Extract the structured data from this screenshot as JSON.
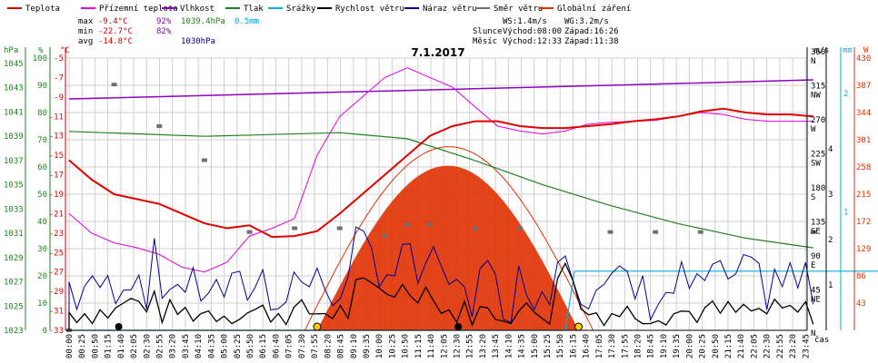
{
  "chart_data": {
    "type": "line",
    "title": "7.1.2017",
    "legend": [
      {
        "name": "Teplota",
        "color": "#e00000"
      },
      {
        "name": "Přízemní teplota",
        "color": "#e000e0"
      },
      {
        "name": "Vlhkost",
        "color": "#9000c0"
      },
      {
        "name": "Tlak",
        "color": "#208020"
      },
      {
        "name": "Srážky",
        "color": "#00b0e0"
      },
      {
        "name": "Rychlost větru",
        "color": "#000000"
      },
      {
        "name": "Náraz větru",
        "color": "#000090"
      },
      {
        "name": "Směr větru",
        "color": "#707070"
      },
      {
        "name": "Globální záření",
        "color": "#e03000"
      }
    ],
    "stats": {
      "max_label": "max",
      "max_temp": "-9.4°C",
      "max_hum": "92%",
      "max_press": "1039.4hPa",
      "rain": "0.5mm",
      "min_label": "min",
      "min_temp": "-22.7°C",
      "min_hum": "82%",
      "avg_label": "avg",
      "avg_temp": "-14.8°C",
      "avg_press": "1030hPa",
      "ws": "WS:1.4m/s",
      "wg": "WG:3.2m/s",
      "slunce_label": "Slunce",
      "slunce_vychod": "Východ:08:00",
      "slunce_zapad": "Západ:16:26",
      "mesic_label": "Měsíc",
      "mesic_vychod": "Východ:12:33",
      "mesic_zapad": "Západ:11:38"
    },
    "axes": {
      "hpa_label": "hPa",
      "hum_label": "%",
      "temp_label": "°C",
      "wind_label": "m/s",
      "rain_label": "mm",
      "sun_label": "W",
      "hpa_ticks": [
        "1023",
        "1025",
        "1027",
        "1029",
        "1031",
        "1033",
        "1035",
        "1037",
        "1039",
        "1041",
        "1043",
        "1045"
      ],
      "hum_ticks": [
        "0",
        "10",
        "20",
        "30",
        "40",
        "50",
        "60",
        "70",
        "80",
        "90",
        "100"
      ],
      "temp_ticks": [
        "-33",
        "-31",
        "-29",
        "-27",
        "-25",
        "-23",
        "-21",
        "-19",
        "-17",
        "-15",
        "-13",
        "-11",
        "-9",
        "-7",
        "-5"
      ],
      "dir_ticks": [
        "0",
        "45",
        "90",
        "135",
        "180",
        "225",
        "270",
        "315",
        "360"
      ],
      "dir_names": [
        "N",
        "NE",
        "E",
        "SE",
        "S",
        "SW",
        "W",
        "NW",
        "N"
      ],
      "wind_ticks": [
        "1",
        "2",
        "3",
        "4"
      ],
      "rain_ticks": [
        "1",
        "2"
      ],
      "sun_ticks": [
        "0",
        "43",
        "86",
        "129",
        "172",
        "215",
        "258",
        "301",
        "344",
        "387",
        "430"
      ],
      "x_ticks": [
        "00:00",
        "00:25",
        "00:50",
        "01:15",
        "01:40",
        "02:05",
        "02:30",
        "02:55",
        "03:20",
        "03:45",
        "04:10",
        "04:35",
        "05:00",
        "05:25",
        "05:50",
        "06:15",
        "06:40",
        "07:05",
        "07:30",
        "07:55",
        "08:20",
        "08:45",
        "09:10",
        "09:35",
        "10:00",
        "10:25",
        "10:50",
        "11:15",
        "11:40",
        "12:05",
        "12:30",
        "12:55",
        "13:20",
        "13:45",
        "14:10",
        "14:35",
        "15:00",
        "15:25",
        "15:50",
        "16:15",
        "16:40",
        "17:05",
        "17:30",
        "17:55",
        "18:20",
        "18:45",
        "19:10",
        "19:35",
        "20:00",
        "20:25",
        "20:50",
        "21:15",
        "21:40",
        "22:05",
        "22:30",
        "22:55",
        "23:20",
        "23:45"
      ],
      "x_unit": "čas"
    },
    "series": {
      "temperature": [
        [
          0,
          -15.5
        ],
        [
          1,
          -17.5
        ],
        [
          2,
          -19
        ],
        [
          3,
          -19.5
        ],
        [
          4,
          -20
        ],
        [
          5,
          -21
        ],
        [
          6,
          -22
        ],
        [
          7,
          -22.5
        ],
        [
          8,
          -22.2
        ],
        [
          9,
          -23.4
        ],
        [
          10,
          -23.3
        ],
        [
          11,
          -22.8
        ],
        [
          12,
          -21
        ],
        [
          13,
          -19
        ],
        [
          14,
          -17
        ],
        [
          15,
          -15
        ],
        [
          16,
          -13
        ],
        [
          17,
          -12
        ],
        [
          18,
          -11.5
        ],
        [
          19,
          -11.5
        ],
        [
          20,
          -12
        ],
        [
          21,
          -12.2
        ],
        [
          22,
          -12.2
        ],
        [
          23,
          -12
        ],
        [
          24,
          -11.8
        ],
        [
          25,
          -11.5
        ],
        [
          26,
          -11.3
        ],
        [
          27,
          -11
        ],
        [
          28,
          -10.5
        ],
        [
          29,
          -10.2
        ],
        [
          30,
          -10.6
        ],
        [
          31,
          -10.8
        ],
        [
          32,
          -10.8
        ],
        [
          33,
          -11
        ]
      ],
      "ground_temp": [
        [
          0,
          -21
        ],
        [
          1,
          -23
        ],
        [
          2,
          -24
        ],
        [
          3,
          -24.5
        ],
        [
          4,
          -25.2
        ],
        [
          5,
          -26.5
        ],
        [
          6,
          -27
        ],
        [
          7,
          -26
        ],
        [
          8,
          -23.3
        ],
        [
          9,
          -22.5
        ],
        [
          10,
          -21.5
        ],
        [
          11,
          -15
        ],
        [
          12,
          -11
        ],
        [
          13,
          -9
        ],
        [
          14,
          -7
        ],
        [
          15,
          -6
        ],
        [
          16,
          -7
        ],
        [
          17,
          -8
        ],
        [
          18,
          -10
        ],
        [
          19,
          -12
        ],
        [
          20,
          -12.5
        ],
        [
          21,
          -12.8
        ],
        [
          22,
          -12.5
        ],
        [
          23,
          -11.8
        ],
        [
          24,
          -11.6
        ],
        [
          25,
          -11.5
        ],
        [
          26,
          -11.4
        ],
        [
          27,
          -11
        ],
        [
          28,
          -10.6
        ],
        [
          29,
          -10.8
        ],
        [
          30,
          -11.3
        ],
        [
          31,
          -11.5
        ],
        [
          32,
          -11.5
        ],
        [
          33,
          -11.5
        ]
      ],
      "humidity": [
        [
          0,
          85
        ],
        [
          24,
          90
        ],
        [
          33,
          92
        ]
      ],
      "pressure": [
        [
          0,
          1039.4
        ],
        [
          6,
          1039
        ],
        [
          12,
          1039.3
        ],
        [
          15,
          1038.8
        ],
        [
          18,
          1037
        ],
        [
          21,
          1035
        ],
        [
          24,
          1033.3
        ],
        [
          27,
          1031.8
        ],
        [
          30,
          1030.6
        ],
        [
          33,
          1029.8
        ]
      ],
      "rain": [
        [
          0,
          0
        ],
        [
          16,
          0
        ],
        [
          16.3,
          0.5
        ],
        [
          33,
          0.5
        ]
      ],
      "wind_dir": [
        [
          0,
          0
        ],
        [
          2,
          325
        ],
        [
          4,
          270
        ],
        [
          6,
          225
        ],
        [
          8,
          130
        ],
        [
          10,
          135
        ],
        [
          12,
          135
        ],
        [
          14,
          125
        ],
        [
          15,
          140
        ],
        [
          16,
          140
        ],
        [
          18,
          135
        ],
        [
          20,
          135
        ],
        [
          24,
          130
        ],
        [
          26,
          130
        ],
        [
          28,
          130
        ],
        [
          33,
          130
        ]
      ],
      "solar_radiation_shape": "bell 08:00-16:26, peak ~260 W/m2 at 12:15",
      "wind_speed_max": 1.4,
      "wind_gust_max": 3.2
    }
  }
}
